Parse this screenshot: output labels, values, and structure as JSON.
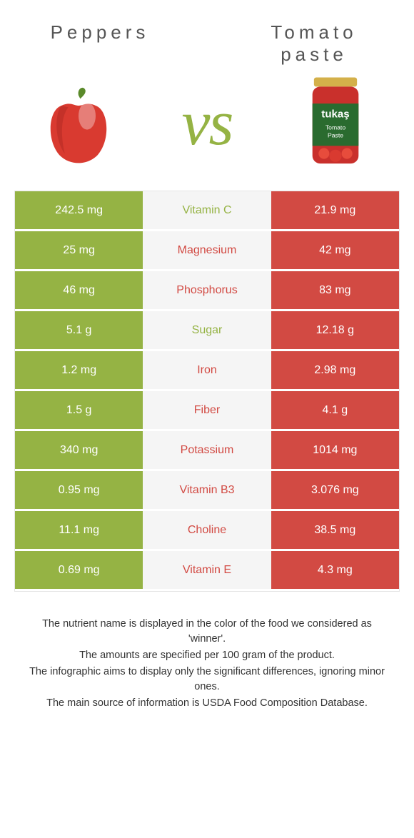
{
  "colors": {
    "peppers": "#95b344",
    "tomato": "#d24a43",
    "vs": "#95b344",
    "neutral_bg": "#f5f5f5",
    "text_dark": "#333333",
    "title_grey": "#555555"
  },
  "foods": {
    "left": {
      "title": "Peppers",
      "image_alt": "red-pepper-icon"
    },
    "right": {
      "title": "Tomato paste",
      "image_alt": "tomato-paste-jar-icon"
    }
  },
  "vs_label": "vs",
  "comparison": {
    "rows": [
      {
        "nutrient": "Vitamin C",
        "left": "242.5 mg",
        "right": "21.9 mg",
        "winner": "left"
      },
      {
        "nutrient": "Magnesium",
        "left": "25 mg",
        "right": "42 mg",
        "winner": "right"
      },
      {
        "nutrient": "Phosphorus",
        "left": "46 mg",
        "right": "83 mg",
        "winner": "right"
      },
      {
        "nutrient": "Sugar",
        "left": "5.1 g",
        "right": "12.18 g",
        "winner": "left"
      },
      {
        "nutrient": "Iron",
        "left": "1.2 mg",
        "right": "2.98 mg",
        "winner": "right"
      },
      {
        "nutrient": "Fiber",
        "left": "1.5 g",
        "right": "4.1 g",
        "winner": "right"
      },
      {
        "nutrient": "Potassium",
        "left": "340 mg",
        "right": "1014 mg",
        "winner": "right"
      },
      {
        "nutrient": "Vitamin B3",
        "left": "0.95 mg",
        "right": "3.076 mg",
        "winner": "right"
      },
      {
        "nutrient": "Choline",
        "left": "11.1 mg",
        "right": "38.5 mg",
        "winner": "right"
      },
      {
        "nutrient": "Vitamin E",
        "left": "0.69 mg",
        "right": "4.3 mg",
        "winner": "right"
      }
    ]
  },
  "footnotes": [
    "The nutrient name is displayed in the color of the food we considered as 'winner'.",
    "The amounts are specified per 100 gram of the product.",
    "The infographic aims to display only the significant differences, ignoring minor ones.",
    "The main source of information is USDA Food Composition Database."
  ]
}
